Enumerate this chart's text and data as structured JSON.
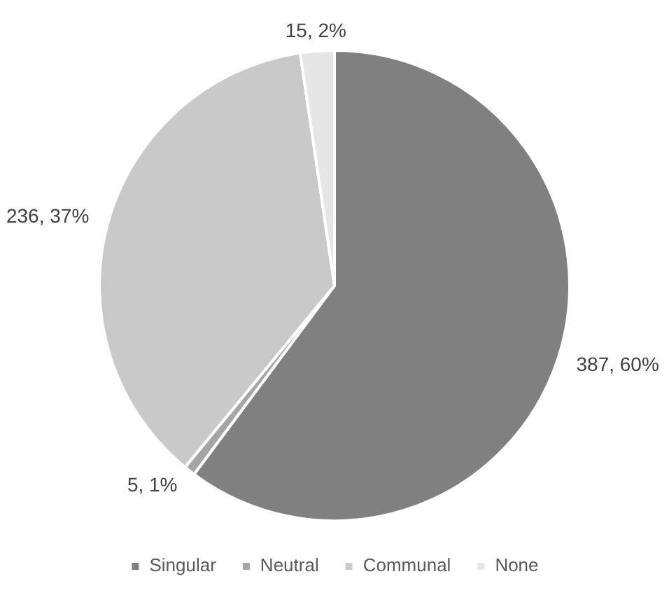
{
  "chart_data": {
    "type": "pie",
    "categories": [
      "Singular",
      "Neutral",
      "Communal",
      "None"
    ],
    "values": [
      387,
      5,
      236,
      15
    ],
    "value_labels": [
      "387, 60%",
      "5, 1%",
      "236, 37%",
      "15, 2%"
    ],
    "colors": [
      "#808080",
      "#a5a5a5",
      "#c9c9c9",
      "#e6e6e6"
    ],
    "legend": "bottom"
  }
}
